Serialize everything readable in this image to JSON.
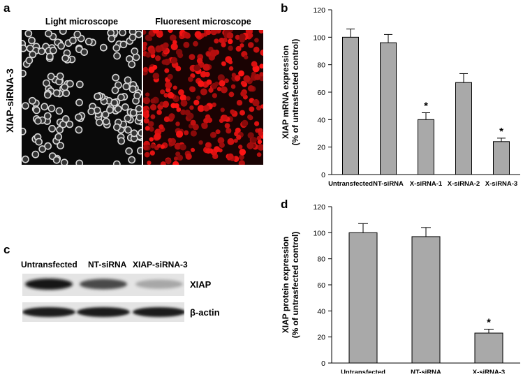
{
  "panels": {
    "a": {
      "letter": "a",
      "title_left": "Light microscope",
      "title_right": "Fluoresent microscope",
      "row_label": "XIAP-siRNA-3"
    },
    "c": {
      "letter": "c",
      "lanes": [
        "Untransfected",
        "NT-siRNA",
        "XIAP-siRNA-3"
      ],
      "bands": [
        "XIAP",
        "β-actin"
      ],
      "xiap_intensity": [
        1.0,
        0.75,
        0.3
      ],
      "actin_intensity": [
        1.0,
        1.0,
        1.0
      ]
    }
  },
  "chart_data": [
    {
      "panel": "b",
      "type": "bar",
      "ylabel_line1": "XIAP mRNA expression",
      "ylabel_line2": "(% of untrasfected control)",
      "categories": [
        "Untransfected",
        "NT-siRNA",
        "X-siRNA-1",
        "X-siRNA-2",
        "X-siRNA-3"
      ],
      "values": [
        100,
        96,
        40,
        67,
        24
      ],
      "errors": [
        6,
        6,
        5,
        6.5,
        2.5
      ],
      "significance": [
        "",
        "",
        "*",
        "",
        "*"
      ],
      "ylim": [
        0,
        120
      ],
      "yticks": [
        0,
        20,
        40,
        60,
        80,
        100,
        120
      ],
      "bar_color": "#a9a9a9"
    },
    {
      "panel": "d",
      "type": "bar",
      "ylabel_line1": "XIAP protein expression",
      "ylabel_line2": "(% of untrasfected control)",
      "categories": [
        "Untransfected",
        "NT-siRNA",
        "X-siRNA-3"
      ],
      "values": [
        100,
        97,
        23
      ],
      "errors": [
        7,
        7,
        3
      ],
      "significance": [
        "",
        "",
        "*"
      ],
      "ylim": [
        0,
        120
      ],
      "yticks": [
        0,
        20,
        40,
        60,
        80,
        100,
        120
      ],
      "bar_color": "#a9a9a9"
    }
  ]
}
